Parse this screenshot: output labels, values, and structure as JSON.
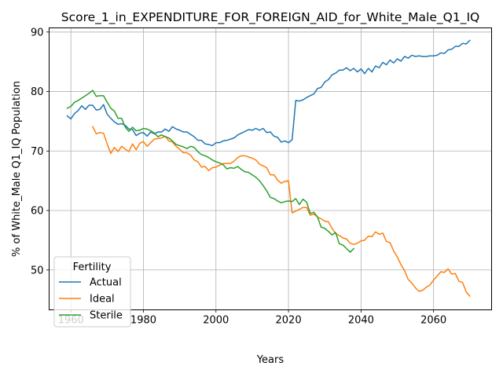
{
  "chart_data": {
    "type": "line",
    "title": "Score_1_in_EXPENDITURE_FOR_FOREIGN_AID_for_White_Male_Q1_IQ",
    "xlabel": "Years",
    "ylabel": "% of White_Male Q1_IQ Population",
    "xlim": [
      1954,
      2076
    ],
    "ylim": [
      43.3,
      90.7
    ],
    "xticks": [
      1960,
      1980,
      2000,
      2020,
      2040,
      2060
    ],
    "yticks": [
      50,
      60,
      70,
      80,
      90
    ],
    "grid": true,
    "legend": {
      "title": "Fertility",
      "placement": "lower-left"
    },
    "series": [
      {
        "name": "Actual",
        "color": "#1f77b4",
        "points": [
          [
            1959,
            75.9
          ],
          [
            1960,
            75.4
          ],
          [
            1961,
            76.3
          ],
          [
            1962,
            76.8
          ],
          [
            1963,
            77.6
          ],
          [
            1964,
            77.0
          ],
          [
            1965,
            77.7
          ],
          [
            1966,
            77.7
          ],
          [
            1967,
            76.9
          ],
          [
            1968,
            77.0
          ],
          [
            1969,
            77.8
          ],
          [
            1970,
            76.2
          ],
          [
            1971,
            75.5
          ],
          [
            1972,
            74.9
          ],
          [
            1973,
            74.5
          ],
          [
            1974,
            74.6
          ],
          [
            1975,
            74.3
          ],
          [
            1976,
            73.7
          ],
          [
            1977,
            73.6
          ],
          [
            1978,
            72.6
          ],
          [
            1979,
            73.0
          ],
          [
            1980,
            73.1
          ],
          [
            1981,
            72.5
          ],
          [
            1982,
            73.2
          ],
          [
            1983,
            72.9
          ],
          [
            1984,
            73.2
          ],
          [
            1985,
            73.2
          ],
          [
            1986,
            73.7
          ],
          [
            1987,
            73.3
          ],
          [
            1988,
            74.1
          ],
          [
            1989,
            73.7
          ],
          [
            1990,
            73.5
          ],
          [
            1991,
            73.2
          ],
          [
            1992,
            73.2
          ],
          [
            1993,
            72.8
          ],
          [
            1994,
            72.4
          ],
          [
            1995,
            71.8
          ],
          [
            1996,
            71.8
          ],
          [
            1997,
            71.2
          ],
          [
            1998,
            71.1
          ],
          [
            1999,
            70.9
          ],
          [
            2000,
            71.4
          ],
          [
            2001,
            71.4
          ],
          [
            2002,
            71.7
          ],
          [
            2003,
            71.8
          ],
          [
            2004,
            72.0
          ],
          [
            2005,
            72.2
          ],
          [
            2006,
            72.7
          ],
          [
            2007,
            73.0
          ],
          [
            2008,
            73.3
          ],
          [
            2009,
            73.6
          ],
          [
            2010,
            73.5
          ],
          [
            2011,
            73.8
          ],
          [
            2012,
            73.5
          ],
          [
            2013,
            73.8
          ],
          [
            2014,
            73.1
          ],
          [
            2015,
            73.2
          ],
          [
            2016,
            72.5
          ],
          [
            2017,
            72.3
          ],
          [
            2018,
            71.5
          ],
          [
            2019,
            71.7
          ],
          [
            2020,
            71.4
          ],
          [
            2021,
            71.9
          ],
          [
            2022,
            78.5
          ],
          [
            2023,
            78.4
          ],
          [
            2024,
            78.6
          ],
          [
            2025,
            79.0
          ],
          [
            2026,
            79.3
          ],
          [
            2027,
            79.6
          ],
          [
            2028,
            80.5
          ],
          [
            2029,
            80.7
          ],
          [
            2030,
            81.6
          ],
          [
            2031,
            82.0
          ],
          [
            2032,
            82.8
          ],
          [
            2033,
            83.1
          ],
          [
            2034,
            83.6
          ],
          [
            2035,
            83.6
          ],
          [
            2036,
            84.0
          ],
          [
            2037,
            83.5
          ],
          [
            2038,
            83.9
          ],
          [
            2039,
            83.3
          ],
          [
            2040,
            83.8
          ],
          [
            2041,
            83.0
          ],
          [
            2042,
            83.9
          ],
          [
            2043,
            83.3
          ],
          [
            2044,
            84.3
          ],
          [
            2045,
            84.0
          ],
          [
            2046,
            84.9
          ],
          [
            2047,
            84.5
          ],
          [
            2048,
            85.3
          ],
          [
            2049,
            84.8
          ],
          [
            2050,
            85.5
          ],
          [
            2051,
            85.1
          ],
          [
            2052,
            85.9
          ],
          [
            2053,
            85.6
          ],
          [
            2054,
            86.1
          ],
          [
            2055,
            85.9
          ],
          [
            2056,
            86.0
          ],
          [
            2057,
            85.9
          ],
          [
            2058,
            85.9
          ],
          [
            2059,
            86.0
          ],
          [
            2060,
            86.0
          ],
          [
            2061,
            86.1
          ],
          [
            2062,
            86.5
          ],
          [
            2063,
            86.4
          ],
          [
            2064,
            87.0
          ],
          [
            2065,
            87.1
          ],
          [
            2066,
            87.6
          ],
          [
            2067,
            87.6
          ],
          [
            2068,
            88.1
          ],
          [
            2069,
            88.0
          ],
          [
            2070,
            88.6
          ]
        ]
      },
      {
        "name": "Ideal",
        "color": "#ff7f0e",
        "points": [
          [
            1966,
            74.1
          ],
          [
            1967,
            72.9
          ],
          [
            1968,
            73.1
          ],
          [
            1969,
            73.0
          ],
          [
            1970,
            71.2
          ],
          [
            1971,
            69.6
          ],
          [
            1972,
            70.6
          ],
          [
            1973,
            69.9
          ],
          [
            1974,
            70.8
          ],
          [
            1975,
            70.3
          ],
          [
            1976,
            69.9
          ],
          [
            1977,
            71.2
          ],
          [
            1978,
            70.2
          ],
          [
            1979,
            71.3
          ],
          [
            1980,
            71.6
          ],
          [
            1981,
            70.8
          ],
          [
            1982,
            71.4
          ],
          [
            1983,
            72.0
          ],
          [
            1984,
            72.1
          ],
          [
            1985,
            72.2
          ],
          [
            1986,
            72.5
          ],
          [
            1987,
            71.7
          ],
          [
            1988,
            71.5
          ],
          [
            1989,
            70.8
          ],
          [
            1990,
            70.3
          ],
          [
            1991,
            69.7
          ],
          [
            1992,
            69.7
          ],
          [
            1993,
            69.3
          ],
          [
            1994,
            68.5
          ],
          [
            1995,
            68.2
          ],
          [
            1996,
            67.3
          ],
          [
            1997,
            67.4
          ],
          [
            1998,
            66.7
          ],
          [
            1999,
            67.2
          ],
          [
            2000,
            67.3
          ],
          [
            2001,
            67.6
          ],
          [
            2002,
            67.9
          ],
          [
            2003,
            67.9
          ],
          [
            2004,
            67.9
          ],
          [
            2005,
            68.3
          ],
          [
            2006,
            68.9
          ],
          [
            2007,
            69.2
          ],
          [
            2008,
            69.2
          ],
          [
            2009,
            69.0
          ],
          [
            2010,
            68.8
          ],
          [
            2011,
            68.5
          ],
          [
            2012,
            67.8
          ],
          [
            2013,
            67.5
          ],
          [
            2014,
            67.2
          ],
          [
            2015,
            66.0
          ],
          [
            2016,
            66.0
          ],
          [
            2017,
            65.1
          ],
          [
            2018,
            64.6
          ],
          [
            2019,
            64.9
          ],
          [
            2020,
            65.0
          ],
          [
            2021,
            59.6
          ],
          [
            2022,
            59.9
          ],
          [
            2023,
            60.2
          ],
          [
            2024,
            60.5
          ],
          [
            2025,
            60.5
          ],
          [
            2026,
            59.2
          ],
          [
            2027,
            59.4
          ],
          [
            2028,
            58.9
          ],
          [
            2029,
            58.6
          ],
          [
            2030,
            58.2
          ],
          [
            2031,
            58.1
          ],
          [
            2032,
            57.0
          ],
          [
            2033,
            56.1
          ],
          [
            2034,
            55.8
          ],
          [
            2035,
            55.4
          ],
          [
            2036,
            55.2
          ],
          [
            2037,
            54.5
          ],
          [
            2038,
            54.3
          ],
          [
            2039,
            54.5
          ],
          [
            2040,
            54.9
          ],
          [
            2041,
            55.0
          ],
          [
            2042,
            55.7
          ],
          [
            2043,
            55.6
          ],
          [
            2044,
            56.4
          ],
          [
            2045,
            56.0
          ],
          [
            2046,
            56.2
          ],
          [
            2047,
            54.8
          ],
          [
            2048,
            54.6
          ],
          [
            2049,
            53.2
          ],
          [
            2050,
            52.2
          ],
          [
            2051,
            50.9
          ],
          [
            2052,
            49.9
          ],
          [
            2053,
            48.4
          ],
          [
            2054,
            47.8
          ],
          [
            2055,
            47.0
          ],
          [
            2056,
            46.4
          ],
          [
            2057,
            46.6
          ],
          [
            2058,
            47.1
          ],
          [
            2059,
            47.5
          ],
          [
            2060,
            48.3
          ],
          [
            2061,
            49.0
          ],
          [
            2062,
            49.7
          ],
          [
            2063,
            49.6
          ],
          [
            2064,
            50.2
          ],
          [
            2065,
            49.3
          ],
          [
            2066,
            49.4
          ],
          [
            2067,
            48.1
          ],
          [
            2068,
            47.9
          ],
          [
            2069,
            46.3
          ],
          [
            2070,
            45.6
          ]
        ]
      },
      {
        "name": "Sterile",
        "color": "#2ca02c",
        "points": [
          [
            1959,
            77.2
          ],
          [
            1960,
            77.5
          ],
          [
            1961,
            78.2
          ],
          [
            1962,
            78.5
          ],
          [
            1963,
            78.9
          ],
          [
            1964,
            79.3
          ],
          [
            1965,
            79.7
          ],
          [
            1966,
            80.2
          ],
          [
            1967,
            79.2
          ],
          [
            1968,
            79.3
          ],
          [
            1969,
            79.3
          ],
          [
            1970,
            78.2
          ],
          [
            1971,
            77.2
          ],
          [
            1972,
            76.7
          ],
          [
            1973,
            75.5
          ],
          [
            1974,
            75.5
          ],
          [
            1975,
            74.0
          ],
          [
            1976,
            73.3
          ],
          [
            1977,
            74.0
          ],
          [
            1978,
            73.4
          ],
          [
            1979,
            73.5
          ],
          [
            1980,
            73.8
          ],
          [
            1981,
            73.7
          ],
          [
            1982,
            73.4
          ],
          [
            1983,
            73.0
          ],
          [
            1984,
            72.4
          ],
          [
            1985,
            72.7
          ],
          [
            1986,
            72.4
          ],
          [
            1987,
            72.2
          ],
          [
            1988,
            71.7
          ],
          [
            1989,
            71.1
          ],
          [
            1990,
            70.9
          ],
          [
            1991,
            70.7
          ],
          [
            1992,
            70.4
          ],
          [
            1993,
            70.8
          ],
          [
            1994,
            70.6
          ],
          [
            1995,
            69.9
          ],
          [
            1996,
            69.4
          ],
          [
            1997,
            69.2
          ],
          [
            1998,
            68.9
          ],
          [
            1999,
            68.5
          ],
          [
            2000,
            68.2
          ],
          [
            2001,
            68.0
          ],
          [
            2002,
            67.7
          ],
          [
            2003,
            67.0
          ],
          [
            2004,
            67.2
          ],
          [
            2005,
            67.1
          ],
          [
            2006,
            67.4
          ],
          [
            2007,
            66.9
          ],
          [
            2008,
            66.5
          ],
          [
            2009,
            66.4
          ],
          [
            2010,
            66.0
          ],
          [
            2011,
            65.6
          ],
          [
            2012,
            65.0
          ],
          [
            2013,
            64.2
          ],
          [
            2014,
            63.3
          ],
          [
            2015,
            62.2
          ],
          [
            2016,
            62.0
          ],
          [
            2017,
            61.6
          ],
          [
            2018,
            61.3
          ],
          [
            2019,
            61.5
          ],
          [
            2020,
            61.6
          ],
          [
            2021,
            61.5
          ],
          [
            2022,
            62.0
          ],
          [
            2023,
            61.0
          ],
          [
            2024,
            61.9
          ],
          [
            2025,
            61.4
          ],
          [
            2026,
            59.5
          ],
          [
            2027,
            59.7
          ],
          [
            2028,
            58.9
          ],
          [
            2029,
            57.2
          ],
          [
            2030,
            57.0
          ],
          [
            2031,
            56.5
          ],
          [
            2032,
            55.9
          ],
          [
            2033,
            56.3
          ],
          [
            2034,
            54.4
          ],
          [
            2035,
            54.2
          ],
          [
            2036,
            53.6
          ],
          [
            2037,
            53.0
          ],
          [
            2038,
            53.6
          ]
        ]
      }
    ]
  }
}
